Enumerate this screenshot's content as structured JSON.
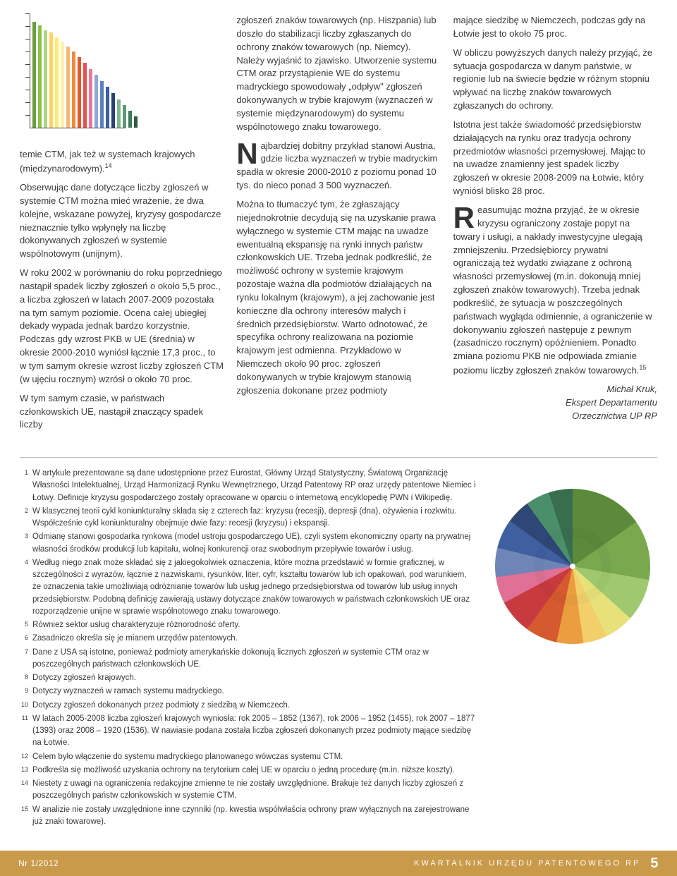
{
  "columns": {
    "left": {
      "p1": "temie CTM, jak też w systemach krajowych (międzynarodowym).",
      "sup1": "14",
      "p2": "Obserwując dane dotyczące liczby zgłoszeń w systemie CTM można mieć wrażenie, że dwa kolejne, wskazane powyżej, kryzysy gospodarcze nieznacznie tylko wpłynęły na liczbę dokonywanych zgłoszeń w systemie wspólnotowym (unijnym).",
      "p3": "W roku 2002 w porównaniu do roku poprzedniego nastąpił spadek liczby zgłoszeń o około 5,5 proc., a liczba zgłoszeń w latach 2007-2009 pozostała na tym samym poziomie. Ocena całej ubiegłej dekady wypada jednak bardzo korzystnie. Podczas gdy wzrost PKB w UE (średnia) w okresie 2000-2010 wyniósł łącznie 17,3 proc., to w tym samym okresie wzrost liczby zgłoszeń CTM (w ujęciu rocznym) wzrósł o około 70 proc.",
      "p4": "W tym samym czasie, w państwach członkowskich UE, nastąpił znaczący spadek liczby"
    },
    "middle": {
      "p1": "zgłoszeń znaków towarowych (np. Hiszpania) lub doszło do stabilizacji liczby zgłaszanych do ochrony znaków towarowych (np. Niemcy). Należy wyjaśnić to zjawisko. Utworzenie systemu CTM oraz przystąpienie WE do systemu madryckiego spowodowały „odpływ\" zgłoszeń dokonywanych w trybie krajowym (wyznaczeń w systemie międzynarodowym) do systemu wspólnotowego znaku towarowego.",
      "drop1": "N",
      "p2": "ajbardziej dobitny przykład stanowi Austria, gdzie liczba wyznaczeń w trybie madryckim spadła w okresie 2000-2010 z poziomu ponad 10 tys. do nieco ponad 3 500 wyznaczeń.",
      "p3": "Można to tłumaczyć tym, że zgłaszający niejednokrotnie decydują się na uzyskanie prawa wyłącznego w systemie CTM mając na uwadze ewentualną ekspansję na rynki innych państw członkowskich UE. Trzeba jednak podkreślić, że możliwość ochrony w systemie krajowym pozostaje ważna dla podmiotów działających na rynku lokalnym (krajowym), a jej zachowanie jest konieczne dla ochrony interesów małych i średnich przedsiębiorstw. Warto odnotować, że specyfika ochrony realizowana na poziomie krajowym jest odmienna. Przykładowo w Niemczech około 90 proc. zgłoszeń dokonywanych w trybie krajowym stanowią zgłoszenia dokonane przez podmioty"
    },
    "right": {
      "p1": "mające siedzibę w Niemczech, podczas gdy na Łotwie jest to około 75 proc.",
      "p2": "W obliczu powyższych danych należy przyjąć, że sytuacja gospodarcza w danym państwie, w regionie lub na świecie będzie w różnym stopniu wpływać na liczbę znaków towarowych zgłaszanych do ochrony.",
      "p3": "Istotna jest także świadomość przedsiębiorstw działających na rynku oraz tradycja ochrony przedmiotów własności przemysłowej. Mając to na uwadze znamienny jest spadek liczby zgłoszeń w okresie 2008-2009 na Łotwie, który wyniósł blisko 28 proc.",
      "drop2": "R",
      "p4": "easumując można przyjąć, że w okresie kryzysu ograniczony zostaje popyt na towary i usługi, a nakłady inwestycyjne ulegają zmniejszeniu. Przedsiębiorcy prywatni ograniczają też wydatki związane z ochroną własności przemysłowej (m.in. dokonują mniej zgłoszeń znaków towarowych). Trzeba jednak podkreślić, że sytuacja w poszczególnych państwach wygląda odmiennie, a ograniczenie w dokonywaniu zgłoszeń następuje z pewnym (zasadniczo rocznym) opóźnieniem. Ponadto zmiana poziomu PKB nie odpowiada zmianie poziomu liczby zgłoszeń znaków towarowych.",
      "sup2": "15"
    }
  },
  "signature": {
    "name": "Michał Kruk,",
    "line2": "Ekspert Departamentu",
    "line3": "Orzecznictwa UP RP"
  },
  "bar_chart": {
    "colors": [
      "#6a9e3e",
      "#8bc34a",
      "#aed581",
      "#ffd166",
      "#f9ee6e",
      "#fff2a8",
      "#f5b971",
      "#f08a3c",
      "#e25b2c",
      "#e94f4f",
      "#ef7896",
      "#8fa8d8",
      "#5c7fc0",
      "#3a5fa5",
      "#284173",
      "#7fb58f",
      "#5b9a6f",
      "#3d7a55",
      "#2f5b41"
    ],
    "heights": [
      150,
      145,
      138,
      135,
      128,
      122,
      115,
      108,
      100,
      92,
      83,
      75,
      66,
      58,
      49,
      40,
      32,
      24,
      16
    ],
    "ticks": 9
  },
  "pie": {
    "slices": [
      {
        "color": "#5b8a3a",
        "angle": 55
      },
      {
        "color": "#79a84f",
        "angle": 45
      },
      {
        "color": "#a0c96f",
        "angle": 32
      },
      {
        "color": "#e8e17a",
        "angle": 22
      },
      {
        "color": "#f2cf6b",
        "angle": 18
      },
      {
        "color": "#ea9e3f",
        "angle": 20
      },
      {
        "color": "#d65a2f",
        "angle": 24
      },
      {
        "color": "#c93a3f",
        "angle": 26
      },
      {
        "color": "#e07096",
        "angle": 20
      },
      {
        "color": "#6f84b7",
        "angle": 22
      },
      {
        "color": "#3f5fa0",
        "angle": 22
      },
      {
        "color": "#2e4776",
        "angle": 18
      },
      {
        "color": "#4b8f6a",
        "angle": 18
      },
      {
        "color": "#396d50",
        "angle": 18
      }
    ]
  },
  "footnotes": [
    {
      "n": "1",
      "t": "W artykule prezentowane są dane udostępnione przez Eurostat, Główny Urząd Statystyczny, Światową Organizację Własności Intelektualnej, Urząd Harmonizacji Rynku Wewnętrznego, Urząd Patentowy RP oraz urzędy patentowe Niemiec i Łotwy. Definicje kryzysu gospodarczego zostały opracowane w oparciu o internetową encyklopedię PWN i Wikipedię."
    },
    {
      "n": "2",
      "t": "W klasycznej teorii cykl koniunkturalny składa się z czterech faz: kryzysu (recesji), depresji (dna), ożywienia i rozkwitu. Współcześnie cykl koniunkturalny obejmuje dwie fazy: recesji (kryzysu) i ekspansji."
    },
    {
      "n": "3",
      "t": "Odmianę stanowi gospodarka rynkowa (model ustroju gospodarczego UE), czyli system ekonomiczny oparty na prywatnej własności środków produkcji lub kapitału, wolnej konkurencji oraz swobodnym przepływie towarów i usług."
    },
    {
      "n": "4",
      "t": "Według niego znak może składać się z jakiegokolwiek oznaczenia, które można przedstawić w formie graficznej, w szczególności z wyrazów, łącznie z nazwiskami, rysunków, liter, cyfr, kształtu towarów lub ich opakowań, pod warunkiem, że oznaczenia takie umożliwiają odróżnianie towarów lub usług jednego przedsiębiorstwa od towarów lub usług innych przedsiębiorstw. Podobną definicję zawierają ustawy dotyczące znaków towarowych w państwach członkowskich UE oraz rozporządzenie unijne w sprawie wspólnotowego znaku towarowego."
    },
    {
      "n": "5",
      "t": "Również sektor usług charakteryzuje różnorodność oferty."
    },
    {
      "n": "6",
      "t": "Zasadniczo określa się je mianem urzędów patentowych."
    },
    {
      "n": "7",
      "t": "Dane z USA są istotne, ponieważ podmioty amerykańskie dokonują licznych zgłoszeń w systemie CTM oraz w poszczególnych państwach członkowskich UE."
    },
    {
      "n": "8",
      "t": "Dotyczy zgłoszeń krajowych."
    },
    {
      "n": "9",
      "t": "Dotyczy wyznaczeń w ramach systemu madryckiego."
    },
    {
      "n": "10",
      "t": "Dotyczy zgłoszeń dokonanych przez podmioty z siedzibą w Niemczech."
    },
    {
      "n": "11",
      "t": "W latach 2005-2008 liczba zgłoszeń krajowych wyniosła: rok 2005 – 1852 (1367), rok 2006 – 1952 (1455), rok 2007 – 1877 (1393) oraz 2008 – 1920 (1536). W nawiasie podana została liczba zgłoszeń dokonanych przez podmioty mające siedzibę na Łotwie."
    },
    {
      "n": "12",
      "t": "Celem było włączenie do systemu madryckiego planowanego wówczas systemu CTM."
    },
    {
      "n": "13",
      "t": "Podkreśla się możliwość uzyskania ochrony na terytorium całej UE w oparciu o jedną procedurę (m.in. niższe koszty)."
    },
    {
      "n": "14",
      "t": "Niestety z uwagi na ograniczenia redakcyjne zmienne te nie zostały uwzględnione. Brakuje też danych liczby zgłoszeń z poszczególnych państw członkowskich w systemie CTM."
    },
    {
      "n": "15",
      "t": "W analizie nie zostały uwzględnione inne czynniki (np. kwestia wspólwłaścia ochrony praw wyłącznych na zarejestrowane już znaki towarowe)."
    }
  ],
  "footer": {
    "issue": "Nr 1/2012",
    "title": "KWARTALNIK URZĘDU PATENTOWEGO RP",
    "page": "5"
  }
}
